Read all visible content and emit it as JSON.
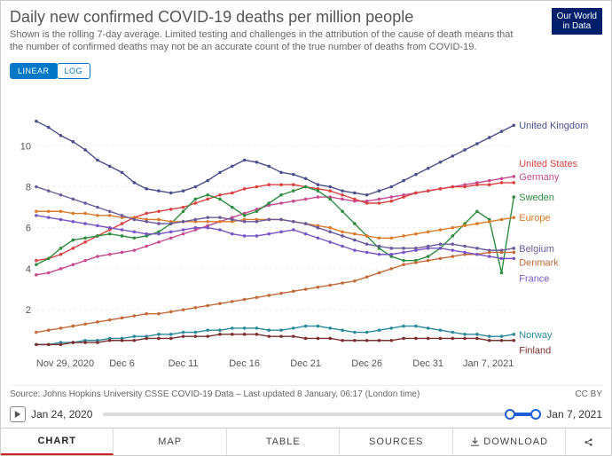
{
  "header": {
    "title": "Daily new confirmed COVID-19 deaths per million people",
    "subtitle": "Shown is the rolling 7-day average. Limited testing and challenges in the attribution of the cause of death means that the number of confirmed deaths may not be an accurate count of the true number of deaths from COVID-19.",
    "logo_line1": "Our World",
    "logo_line2": "in Data"
  },
  "scale": {
    "linear": "LINEAR",
    "log": "LOG",
    "active": "linear"
  },
  "chart": {
    "type": "line",
    "xlabels": [
      "Nov 29, 2020",
      "Dec 6",
      "Dec 11",
      "Dec 16",
      "Dec 21",
      "Dec 26",
      "Dec 31",
      "Jan 7, 2021"
    ],
    "xpositions": [
      0,
      7,
      12,
      17,
      22,
      27,
      32,
      39
    ],
    "xrange": [
      0,
      39
    ],
    "ylim": [
      0,
      12
    ],
    "yticks": [
      2,
      4,
      6,
      8,
      10
    ],
    "grid_color": "#dddddd",
    "background": "#ffffff",
    "label_fontsize": 11,
    "series": [
      {
        "name": "United Kingdom",
        "color": "#4a4f8a",
        "values": [
          11.2,
          10.9,
          10.5,
          10.2,
          9.8,
          9.3,
          9.0,
          8.7,
          8.2,
          7.9,
          7.8,
          7.7,
          7.8,
          8.0,
          8.3,
          8.7,
          9.0,
          9.3,
          9.2,
          9.0,
          8.7,
          8.6,
          8.4,
          8.1,
          8.0,
          7.8,
          7.7,
          7.6,
          7.8,
          8.0,
          8.3,
          8.6,
          8.9,
          9.2,
          9.5,
          9.8,
          10.1,
          10.4,
          10.7,
          11.0
        ]
      },
      {
        "name": "Germany",
        "color": "#c64a8f",
        "values": [
          3.7,
          3.8,
          4.0,
          4.2,
          4.4,
          4.6,
          4.7,
          4.8,
          4.9,
          5.1,
          5.3,
          5.5,
          5.7,
          5.9,
          6.1,
          6.3,
          6.5,
          6.7,
          6.9,
          7.1,
          7.2,
          7.3,
          7.4,
          7.5,
          7.5,
          7.4,
          7.3,
          7.3,
          7.4,
          7.5,
          7.6,
          7.7,
          7.8,
          7.9,
          8.0,
          8.1,
          8.2,
          8.3,
          8.4,
          8.5
        ]
      },
      {
        "name": "United States",
        "color": "#d94040",
        "values": [
          4.4,
          4.5,
          4.7,
          5.0,
          5.3,
          5.6,
          5.9,
          6.2,
          6.5,
          6.7,
          6.8,
          6.9,
          7.0,
          7.2,
          7.4,
          7.6,
          7.7,
          7.9,
          8.0,
          8.1,
          8.1,
          8.1,
          8.0,
          7.9,
          7.8,
          7.6,
          7.4,
          7.2,
          7.2,
          7.3,
          7.5,
          7.7,
          7.8,
          7.9,
          8.0,
          8.0,
          8.1,
          8.1,
          8.2,
          8.2
        ]
      },
      {
        "name": "Sweden",
        "color": "#2e8c3e",
        "values": [
          4.2,
          4.5,
          5.0,
          5.4,
          5.5,
          5.6,
          5.7,
          5.6,
          5.5,
          5.6,
          5.8,
          6.2,
          6.8,
          7.4,
          7.6,
          7.4,
          7.0,
          6.6,
          6.8,
          7.2,
          7.6,
          7.8,
          8.0,
          7.8,
          7.4,
          6.8,
          6.2,
          5.6,
          5.0,
          4.6,
          4.4,
          4.4,
          4.6,
          5.0,
          5.6,
          6.2,
          6.8,
          6.4,
          3.8,
          7.5
        ]
      },
      {
        "name": "Europe",
        "color": "#d97b2a",
        "values": [
          6.8,
          6.8,
          6.8,
          6.7,
          6.7,
          6.6,
          6.6,
          6.5,
          6.5,
          6.4,
          6.4,
          6.3,
          6.3,
          6.3,
          6.3,
          6.3,
          6.3,
          6.4,
          6.4,
          6.4,
          6.4,
          6.3,
          6.2,
          6.1,
          6.0,
          5.8,
          5.7,
          5.6,
          5.5,
          5.5,
          5.6,
          5.7,
          5.8,
          5.9,
          6.0,
          6.1,
          6.2,
          6.3,
          6.4,
          6.5
        ]
      },
      {
        "name": "Belgium",
        "color": "#6a5a9a",
        "values": [
          8.0,
          7.8,
          7.6,
          7.4,
          7.2,
          7.0,
          6.8,
          6.6,
          6.4,
          6.3,
          6.2,
          6.2,
          6.3,
          6.4,
          6.5,
          6.5,
          6.4,
          6.3,
          6.3,
          6.4,
          6.4,
          6.3,
          6.2,
          6.0,
          5.8,
          5.6,
          5.4,
          5.2,
          5.1,
          5.0,
          5.0,
          5.0,
          5.1,
          5.2,
          5.2,
          5.1,
          5.0,
          4.9,
          4.9,
          5.0
        ]
      },
      {
        "name": "Denmark",
        "color": "#c26a3a",
        "values": [
          0.9,
          1.0,
          1.1,
          1.2,
          1.3,
          1.4,
          1.5,
          1.6,
          1.7,
          1.8,
          1.8,
          1.9,
          2.0,
          2.1,
          2.2,
          2.3,
          2.4,
          2.5,
          2.6,
          2.7,
          2.8,
          2.9,
          3.0,
          3.1,
          3.2,
          3.3,
          3.4,
          3.6,
          3.8,
          4.0,
          4.2,
          4.3,
          4.4,
          4.5,
          4.6,
          4.7,
          4.7,
          4.8,
          4.8,
          4.8
        ]
      },
      {
        "name": "France",
        "color": "#7854c4",
        "values": [
          6.6,
          6.5,
          6.4,
          6.3,
          6.2,
          6.1,
          6.0,
          5.9,
          5.8,
          5.7,
          5.7,
          5.8,
          5.9,
          6.0,
          6.0,
          5.9,
          5.7,
          5.6,
          5.6,
          5.7,
          5.8,
          5.9,
          5.7,
          5.5,
          5.3,
          5.1,
          4.9,
          4.8,
          4.7,
          4.7,
          4.8,
          4.9,
          5.0,
          5.0,
          4.9,
          4.8,
          4.7,
          4.6,
          4.5,
          4.5
        ]
      },
      {
        "name": "Norway",
        "color": "#2a8a9a",
        "values": [
          0.3,
          0.3,
          0.4,
          0.4,
          0.5,
          0.5,
          0.6,
          0.6,
          0.7,
          0.7,
          0.8,
          0.8,
          0.9,
          0.9,
          1.0,
          1.0,
          1.1,
          1.1,
          1.1,
          1.0,
          1.0,
          1.1,
          1.2,
          1.2,
          1.1,
          1.0,
          0.9,
          0.9,
          1.0,
          1.1,
          1.2,
          1.2,
          1.1,
          1.0,
          0.9,
          0.8,
          0.8,
          0.7,
          0.7,
          0.8
        ]
      },
      {
        "name": "Finland",
        "color": "#7a3030",
        "values": [
          0.3,
          0.3,
          0.3,
          0.4,
          0.4,
          0.4,
          0.5,
          0.5,
          0.5,
          0.6,
          0.6,
          0.6,
          0.7,
          0.7,
          0.7,
          0.8,
          0.8,
          0.8,
          0.8,
          0.7,
          0.7,
          0.7,
          0.6,
          0.6,
          0.6,
          0.5,
          0.5,
          0.5,
          0.5,
          0.5,
          0.6,
          0.6,
          0.6,
          0.6,
          0.6,
          0.6,
          0.6,
          0.5,
          0.5,
          0.5
        ]
      }
    ]
  },
  "footer": {
    "source": "Source: Johns Hopkins University CSSE COVID-19 Data – Last updated 8 January, 06:17 (London time)",
    "license": "CC BY"
  },
  "timeline": {
    "start": "Jan 24, 2020",
    "end": "Jan 7, 2021",
    "range_start_pct": 94,
    "range_end_pct": 100
  },
  "tabs": {
    "chart": "CHART",
    "map": "MAP",
    "table": "TABLE",
    "sources": "SOURCES",
    "download": "DOWNLOAD"
  }
}
